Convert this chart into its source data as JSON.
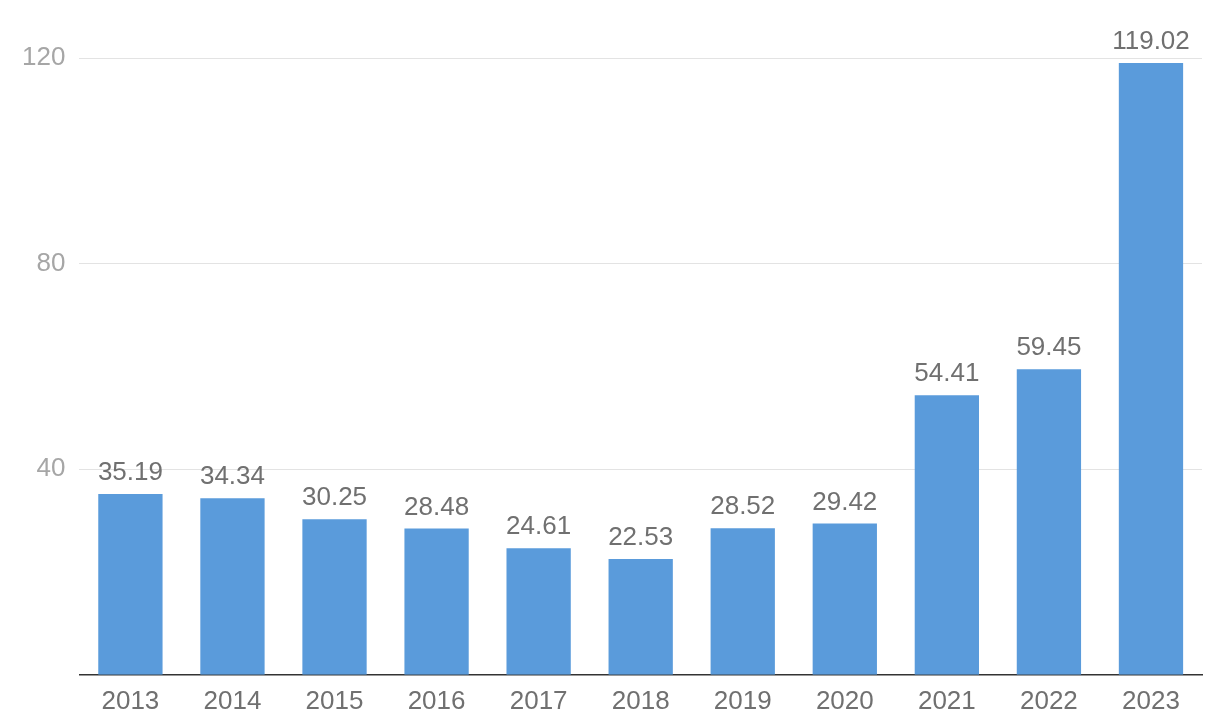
{
  "chart_data": {
    "type": "bar",
    "categories": [
      "2013",
      "2014",
      "2015",
      "2016",
      "2017",
      "2018",
      "2019",
      "2020",
      "2021",
      "2022",
      "2023"
    ],
    "values": [
      35.19,
      34.34,
      30.25,
      28.48,
      24.61,
      22.53,
      28.52,
      29.42,
      54.41,
      59.45,
      119.02
    ],
    "color": "#5a9bdb",
    "ylim": [
      0,
      120
    ],
    "yticks": [
      40,
      80,
      120
    ],
    "grid": "y",
    "data_labels": true
  }
}
